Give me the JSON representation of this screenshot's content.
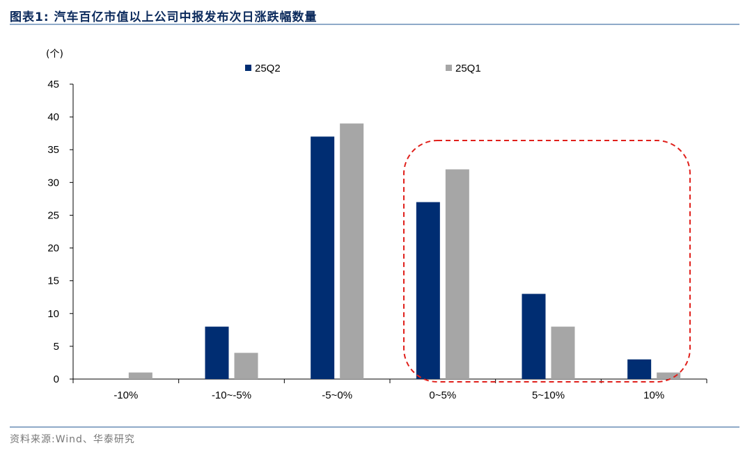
{
  "header": {
    "title": "图表1:   汽车百亿市值以上公司中报发布次日涨跌幅数量"
  },
  "footer": {
    "source": "资料来源:Wind、华泰研究"
  },
  "colors": {
    "series_25Q2": "#002d72",
    "series_25Q1": "#a6a6a6",
    "highlight": "#e0201b",
    "rule": "#8ea9c8"
  },
  "chart_data": {
    "type": "bar",
    "unit": "(个)",
    "categories": [
      "-10%",
      "-10~-5%",
      "-5~0%",
      "0~5%",
      "5~10%",
      "10%"
    ],
    "series": [
      {
        "name": "25Q2",
        "values": [
          0,
          8,
          37,
          27,
          13,
          3
        ]
      },
      {
        "name": "25Q1",
        "values": [
          1,
          4,
          39,
          32,
          8,
          1
        ]
      }
    ],
    "ylim": [
      0,
      45
    ],
    "yticks": [
      0,
      5,
      10,
      15,
      20,
      25,
      30,
      35,
      40,
      45
    ],
    "legend_position": "top",
    "grid": false,
    "highlight_categories": [
      "0~5%",
      "5~10%",
      "10%"
    ]
  }
}
